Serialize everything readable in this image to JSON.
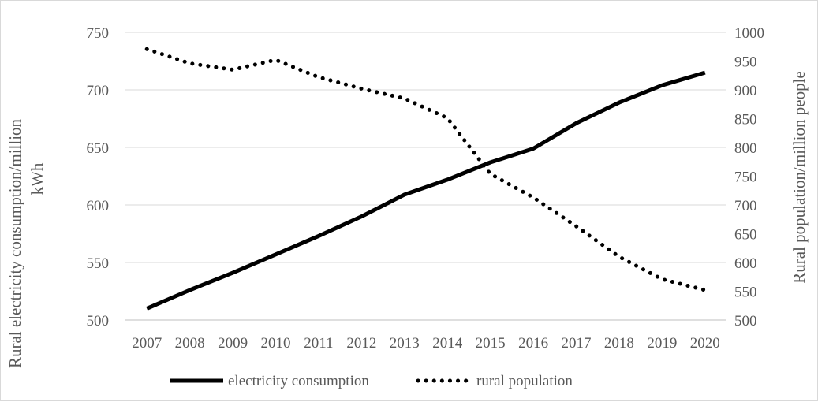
{
  "chart_data": {
    "type": "line",
    "title": "",
    "categories": [
      "2007",
      "2008",
      "2009",
      "2010",
      "2011",
      "2012",
      "2013",
      "2014",
      "2015",
      "2016",
      "2017",
      "2018",
      "2019",
      "2020"
    ],
    "y_left": {
      "label_line1": "Rural electricity consumption/million",
      "label_line2": "kWh",
      "range": [
        500,
        750
      ],
      "ticks": [
        "500",
        "550",
        "600",
        "650",
        "700",
        "750"
      ]
    },
    "y_right": {
      "label": "Rural population/million people",
      "range": [
        500,
        1000
      ],
      "ticks": [
        "500",
        "550",
        "600",
        "650",
        "700",
        "750",
        "800",
        "850",
        "900",
        "950",
        "1000"
      ]
    },
    "series": [
      {
        "name": "electricity consumption",
        "axis": "left",
        "style": "solid",
        "color": "#000000",
        "values": [
          510,
          526,
          541,
          557,
          573,
          590,
          609,
          622,
          637,
          649,
          671,
          689,
          704,
          715
        ]
      },
      {
        "name": "rural population",
        "axis": "right",
        "style": "dotted",
        "color": "#000000",
        "values": [
          971,
          946,
          935,
          952,
          922,
          902,
          885,
          851,
          754,
          713,
          663,
          610,
          571,
          552
        ]
      }
    ],
    "grid": true,
    "legend_position": "bottom"
  }
}
